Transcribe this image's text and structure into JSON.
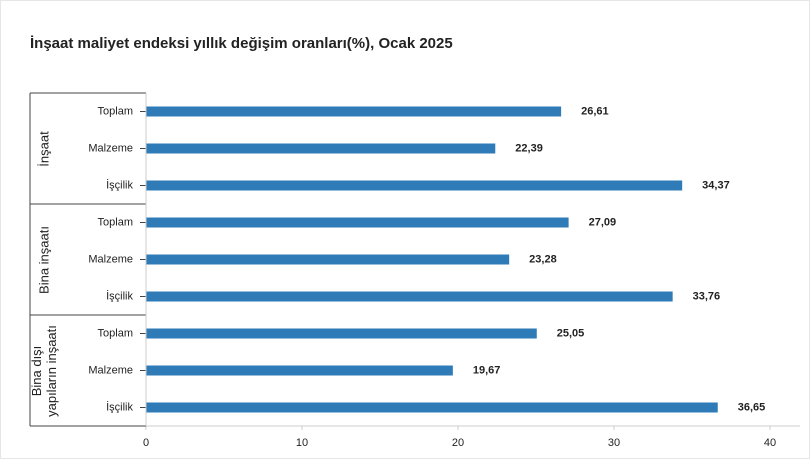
{
  "chart_data": {
    "type": "bar",
    "title": "İnşaat maliyet endeksi yıllık değişim oranları(%), Ocak 2025",
    "color": "#2f7bb8",
    "groups": [
      {
        "name": "İnşaat",
        "categories": [
          "Toplam",
          "Malzeme",
          "İşçilik"
        ],
        "values": [
          26.61,
          22.39,
          34.37
        ],
        "value_labels": [
          "26,61",
          "22,39",
          "34,37"
        ]
      },
      {
        "name": "Bina inşaatı",
        "categories": [
          "Toplam",
          "Malzeme",
          "İşçilik"
        ],
        "values": [
          27.09,
          23.28,
          33.76
        ],
        "value_labels": [
          "27,09",
          "23,28",
          "33,76"
        ]
      },
      {
        "name": "Bina dışı yapıların inşaatı",
        "categories": [
          "Toplam",
          "Malzeme",
          "İşçilik"
        ],
        "values": [
          25.05,
          19.67,
          36.65
        ],
        "value_labels": [
          "25,05",
          "19,67",
          "36,65"
        ]
      }
    ],
    "xlim": [
      0,
      40
    ],
    "xticks": [
      0,
      10,
      20,
      30,
      40
    ]
  }
}
